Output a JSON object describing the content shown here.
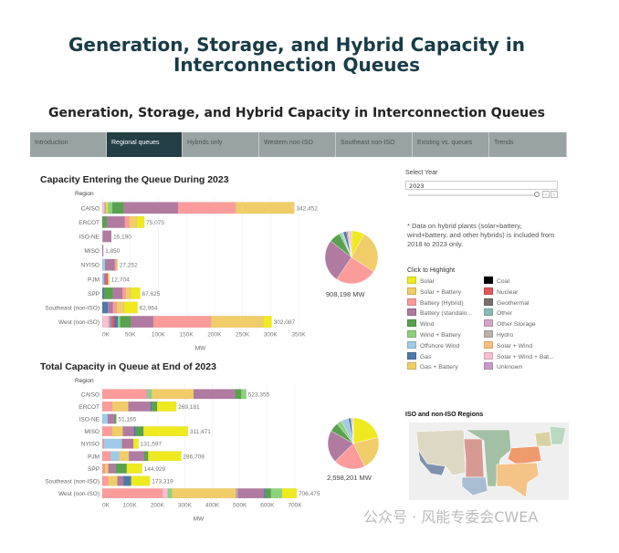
{
  "title": "Generation, Storage, and Hybrid Capacity in Interconnection Queues",
  "subtitle": "Generation, Storage, and Hybrid Capacity in Interconnection Queues",
  "tabs": [
    {
      "label": "Introduction"
    },
    {
      "label": "Regional queues",
      "active": true
    },
    {
      "label": "Hybrids only"
    },
    {
      "label": "Western non-ISO"
    },
    {
      "label": "Southeast non-ISO"
    },
    {
      "label": "Existing vs. queues"
    },
    {
      "label": "Trends"
    }
  ],
  "select_year": {
    "label": "Select Year",
    "value": "2023"
  },
  "note": "* Data on hybrid plants (solar+battery, wind+battery, and other hybrids) is included from 2018 to 2023 only.",
  "legend": {
    "title": "Click to Highlight",
    "items": [
      {
        "label": "Solar",
        "color": "#eeea1f"
      },
      {
        "label": "Solar + Battery",
        "color": "#f0cd68"
      },
      {
        "label": "Battery (Hybrid)",
        "color": "#fb9c9b"
      },
      {
        "label": "Battery (standalo...",
        "color": "#b07aa1"
      },
      {
        "label": "Wind",
        "color": "#59a14f"
      },
      {
        "label": "Wind + Battery",
        "color": "#8cd17d"
      },
      {
        "label": "Offshore Wind",
        "color": "#a0cbe8"
      },
      {
        "label": "Gas",
        "color": "#4e79a7"
      },
      {
        "label": "Gas + Battery",
        "color": "#f1ce63"
      },
      {
        "label": "Coal",
        "color": "#000000"
      },
      {
        "label": "Nuclear",
        "color": "#e15759"
      },
      {
        "label": "Geothermal",
        "color": "#79706e"
      },
      {
        "label": "Other",
        "color": "#86bcb6"
      },
      {
        "label": "Other Storage",
        "color": "#d4a6c8"
      },
      {
        "label": "Hydro",
        "color": "#bab0ac"
      },
      {
        "label": "Solar + Wind",
        "color": "#ffbe7d"
      },
      {
        "label": "Solar + Wind + Bat...",
        "color": "#fabfd2"
      },
      {
        "label": "Unknown",
        "color": "#c99bc9"
      }
    ]
  },
  "map": {
    "title": "ISO and non-ISO Regions"
  },
  "watermark": "公众号 · 风能专委会CWEA",
  "chart_data": [
    {
      "type": "bar",
      "orientation": "horizontal",
      "stacked": true,
      "title": "Capacity Entering the Queue During 2023",
      "ylabel": "Region",
      "xlabel": "MW",
      "xlim": [
        0,
        350000
      ],
      "xticks": [
        "0K",
        "50K",
        "100K",
        "150K",
        "200K",
        "250K",
        "300K",
        "350K"
      ],
      "categories": [
        "CAISO",
        "ERCOT",
        "ISO-NE",
        "MISO",
        "NYISO",
        "PJM",
        "SPP",
        "Southeast (non-ISO)",
        "West (non-ISO)"
      ],
      "totals": [
        "342,452",
        "75,075",
        "16,190",
        "1,850",
        "27,252",
        "12,704",
        "67,625",
        "62,964",
        "302,087"
      ],
      "segments": [
        [
          [
            "Solar + Wind + Bat...",
            4000
          ],
          [
            "Hydro",
            3000
          ],
          [
            "Solar",
            3000
          ],
          [
            "Wind + Battery",
            8000
          ],
          [
            "Wind",
            20000
          ],
          [
            "Battery (standalo...",
            97000
          ],
          [
            "Battery (Hybrid)",
            103000
          ],
          [
            "Solar + Battery",
            104452
          ]
        ],
        [
          [
            "Wind",
            8000
          ],
          [
            "Battery (standalo...",
            32000
          ],
          [
            "Battery (Hybrid)",
            8000
          ],
          [
            "Solar + Battery",
            14000
          ],
          [
            "Solar",
            13075
          ]
        ],
        [
          [
            "Offshore Wind",
            1000
          ],
          [
            "Battery (standalo...",
            15190
          ]
        ],
        [
          [
            "Battery (standalo...",
            1850
          ]
        ],
        [
          [
            "Offshore Wind",
            5000
          ],
          [
            "Battery (standalo...",
            17000
          ],
          [
            "Battery (Hybrid)",
            3000
          ],
          [
            "Solar + Battery",
            2252
          ]
        ],
        [
          [
            "Offshore Wind",
            3000
          ],
          [
            "Battery (standalo...",
            4000
          ],
          [
            "Nuclear",
            3000
          ],
          [
            "Solar + Battery",
            2704
          ]
        ],
        [
          [
            "Gas",
            3000
          ],
          [
            "Wind",
            16000
          ],
          [
            "Battery (standalo...",
            17000
          ],
          [
            "Battery (Hybrid)",
            6000
          ],
          [
            "Solar + Battery",
            9000
          ],
          [
            "Solar",
            16625
          ]
        ],
        [
          [
            "Gas",
            10000
          ],
          [
            "Battery (standalo...",
            9000
          ],
          [
            "Battery (Hybrid)",
            7000
          ],
          [
            "Solar + Battery",
            13000
          ],
          [
            "Solar",
            23964
          ]
        ],
        [
          [
            "Solar + Wind + Bat...",
            11000
          ],
          [
            "Hydro",
            3000
          ],
          [
            "Battery (standalo...",
            4000
          ],
          [
            "Nuclear",
            4000
          ],
          [
            "Gas",
            6000
          ],
          [
            "Wind + Battery",
            4000
          ],
          [
            "Wind",
            19000
          ],
          [
            "Battery (standalo...",
            40000
          ],
          [
            "Battery (Hybrid)",
            103000
          ],
          [
            "Solar + Battery",
            93000
          ],
          [
            "Solar",
            15087
          ]
        ]
      ],
      "pie_total": "908,198",
      "pie_unit": "MW"
    },
    {
      "type": "bar",
      "orientation": "horizontal",
      "stacked": true,
      "title": "Total Capacity in Queue at End of 2023",
      "ylabel": "Region",
      "xlabel": "MW",
      "xlim": [
        0,
        700000
      ],
      "xticks": [
        "0K",
        "100K",
        "200K",
        "300K",
        "400K",
        "500K",
        "600K",
        "700K"
      ],
      "categories": [
        "CAISO",
        "ERCOT",
        "ISO-NE",
        "MISO",
        "NYISO",
        "PJM",
        "SPP",
        "Southeast (non-ISO)",
        "West (non-ISO)"
      ],
      "totals": [
        "523,355",
        "269,181",
        "51,165",
        "311,471",
        "131,597",
        "286,709",
        "144,929",
        "173,319",
        "706,475"
      ],
      "segments": [
        [
          [
            "Battery (Hybrid)",
            160000
          ],
          [
            "Hydro",
            10000
          ],
          [
            "Wind + Battery",
            10000
          ],
          [
            "Solar + Battery",
            152000
          ],
          [
            "Battery (standalo...",
            151000
          ],
          [
            "Wind",
            22000
          ],
          [
            "Wind + Battery",
            18355
          ]
        ],
        [
          [
            "Battery (Hybrid)",
            37000
          ],
          [
            "Solar + Battery",
            58000
          ],
          [
            "Battery (standalo...",
            80000
          ],
          [
            "Gas",
            5000
          ],
          [
            "Wind",
            19000
          ],
          [
            "Solar",
            70181
          ]
        ],
        [
          [
            "Offshore Wind",
            20000
          ],
          [
            "Battery (standalo...",
            25000
          ],
          [
            "Wind",
            6165
          ]
        ],
        [
          [
            "Battery (Hybrid)",
            35000
          ],
          [
            "Solar + Battery",
            40000
          ],
          [
            "Battery (standalo...",
            40000
          ],
          [
            "Gas",
            7000
          ],
          [
            "Wind",
            28000
          ],
          [
            "Solar",
            161471
          ]
        ],
        [
          [
            "Battery (Hybrid)",
            5000
          ],
          [
            "Offshore Wind",
            65000
          ],
          [
            "Hydro",
            3000
          ],
          [
            "Battery (standalo...",
            40000
          ],
          [
            "Solar",
            18597
          ]
        ],
        [
          [
            "Battery (Hybrid)",
            30000
          ],
          [
            "Offshore Wind",
            32000
          ],
          [
            "Solar + Battery",
            35000
          ],
          [
            "Battery (standalo...",
            55000
          ],
          [
            "Wind",
            15000
          ],
          [
            "Solar",
            119709
          ]
        ],
        [
          [
            "Battery (Hybrid)",
            10000
          ],
          [
            "Solar + Battery",
            12000
          ],
          [
            "Battery (standalo...",
            27000
          ],
          [
            "Wind",
            40000
          ],
          [
            "Solar",
            55929
          ]
        ],
        [
          [
            "Battery (Hybrid)",
            22000
          ],
          [
            "Solar + Battery",
            33000
          ],
          [
            "Battery (standalo...",
            22000
          ],
          [
            "Gas",
            28000
          ],
          [
            "Solar",
            68319
          ]
        ],
        [
          [
            "Battery (Hybrid)",
            220000
          ],
          [
            "Solar + Wind + Bat...",
            18000
          ],
          [
            "Wind + Battery",
            15000
          ],
          [
            "Solar + Battery",
            232000
          ],
          [
            "Hydro",
            8000
          ],
          [
            "Battery (standalo...",
            95000
          ],
          [
            "Gas",
            5000
          ],
          [
            "Wind",
            20000
          ],
          [
            "Wind + Battery",
            40000
          ],
          [
            "Solar",
            53475
          ]
        ]
      ],
      "pie_total": "2,598,201",
      "pie_unit": "MW"
    }
  ]
}
